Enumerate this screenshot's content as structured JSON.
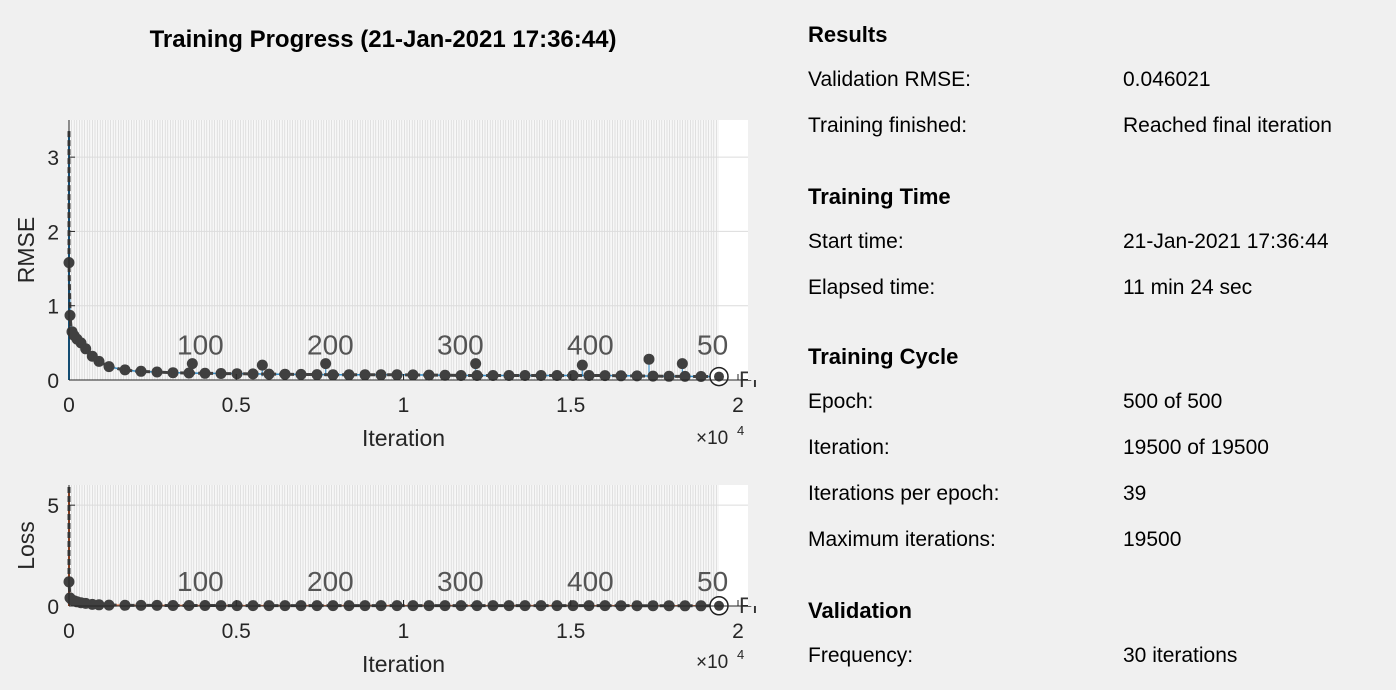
{
  "title": "Training Progress (21-Jan-2021 17:36:44)",
  "results": {
    "heading": "Results",
    "rows": [
      {
        "label": "Validation RMSE:",
        "value": "0.046021"
      },
      {
        "label": "Training finished:",
        "value": "Reached final iteration"
      }
    ]
  },
  "training_time": {
    "heading": "Training Time",
    "rows": [
      {
        "label": "Start time:",
        "value": "21-Jan-2021 17:36:44"
      },
      {
        "label": "Elapsed time:",
        "value": "11 min 24 sec"
      }
    ]
  },
  "training_cycle": {
    "heading": "Training Cycle",
    "rows": [
      {
        "label": "Epoch:",
        "value": "500 of 500"
      },
      {
        "label": "Iteration:",
        "value": "19500 of 19500"
      },
      {
        "label": "Iterations per epoch:",
        "value": "39"
      },
      {
        "label": "Maximum iterations:",
        "value": "19500"
      }
    ]
  },
  "validation": {
    "heading": "Validation",
    "rows": [
      {
        "label": "Frequency:",
        "value": "30 iterations"
      }
    ]
  },
  "colors": {
    "rmse_line": "#0072bd",
    "loss_line": "#d95319",
    "validation_marker": "#404040",
    "background": "#f0f0f0"
  },
  "chart_data": [
    {
      "type": "line",
      "ylabel": "RMSE",
      "xlabel": "Iteration",
      "x_exponent_label": "×10",
      "x_exponent": "4",
      "xlim": [
        0,
        19500
      ],
      "ylim": [
        0,
        3.5
      ],
      "xticks": [
        0,
        5000,
        10000,
        15000,
        20000
      ],
      "xtick_labels": [
        "0",
        "0.5",
        "1",
        "1.5",
        "2"
      ],
      "yticks": [
        0,
        1,
        2,
        3
      ],
      "ytick_labels": [
        "0",
        "1",
        "2",
        "3"
      ],
      "epoch_markers": [
        {
          "label": "100",
          "x": 3900
        },
        {
          "label": "200",
          "x": 7800
        },
        {
          "label": "300",
          "x": 11700
        },
        {
          "label": "400",
          "x": 15600
        },
        {
          "label": "50",
          "x": 19500
        }
      ],
      "final_label": "Fi",
      "training_peak": 3.35,
      "series": [
        {
          "values_x": [
            1,
            30,
            60,
            90,
            150,
            240,
            360,
            500,
            700,
            900,
            1200,
            1600,
            2000,
            3000,
            4000,
            6000,
            8000,
            10000,
            12000,
            14000,
            16000,
            18000,
            19500
          ],
          "values_y": [
            1.58,
            0.87,
            0.72,
            0.65,
            0.6,
            0.55,
            0.5,
            0.42,
            0.32,
            0.25,
            0.18,
            0.14,
            0.12,
            0.1,
            0.09,
            0.08,
            0.07,
            0.07,
            0.06,
            0.06,
            0.06,
            0.05,
            0.046
          ]
        }
      ],
      "validation_spikes": [
        {
          "x": 3700,
          "y": 0.22
        },
        {
          "x": 5800,
          "y": 0.2
        },
        {
          "x": 7700,
          "y": 0.22
        },
        {
          "x": 12200,
          "y": 0.22
        },
        {
          "x": 15400,
          "y": 0.2
        },
        {
          "x": 17400,
          "y": 0.28
        },
        {
          "x": 18400,
          "y": 0.22
        }
      ]
    },
    {
      "type": "line",
      "ylabel": "Loss",
      "xlabel": "Iteration",
      "x_exponent_label": "×10",
      "x_exponent": "4",
      "xlim": [
        0,
        19500
      ],
      "ylim": [
        0,
        6
      ],
      "xticks": [
        0,
        5000,
        10000,
        15000,
        20000
      ],
      "xtick_labels": [
        "0",
        "0.5",
        "1",
        "1.5",
        "2"
      ],
      "yticks": [
        0,
        5
      ],
      "ytick_labels": [
        "0",
        "5"
      ],
      "epoch_markers": [
        {
          "label": "100",
          "x": 3900
        },
        {
          "label": "200",
          "x": 7800
        },
        {
          "label": "300",
          "x": 11700
        },
        {
          "label": "400",
          "x": 15600
        },
        {
          "label": "50",
          "x": 19500
        }
      ],
      "final_label": "Fi",
      "training_peak": 5.9,
      "series": [
        {
          "values_x": [
            1,
            30,
            90,
            200,
            400,
            700,
            1000,
            2000,
            5000,
            10000,
            15000,
            19500
          ],
          "values_y": [
            1.2,
            0.4,
            0.3,
            0.22,
            0.15,
            0.08,
            0.05,
            0.03,
            0.02,
            0.02,
            0.02,
            0.01
          ]
        }
      ]
    }
  ]
}
